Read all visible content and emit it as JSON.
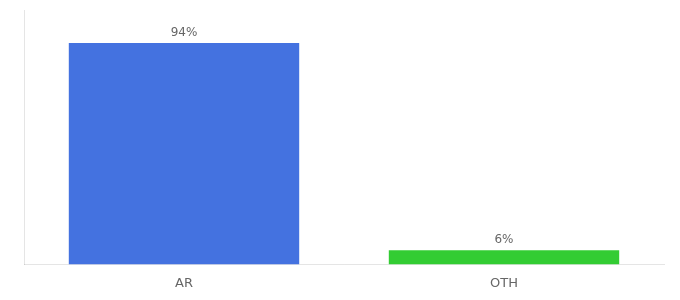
{
  "chart_data": {
    "type": "bar",
    "categories": [
      "AR",
      "OTH"
    ],
    "values": [
      94,
      6
    ],
    "value_labels": [
      "94%",
      "6%"
    ],
    "colors": [
      "#4472e0",
      "#33cc33"
    ],
    "ylim": [
      0,
      108
    ],
    "data_labels": true,
    "tick_labels": "x",
    "grid": false
  }
}
